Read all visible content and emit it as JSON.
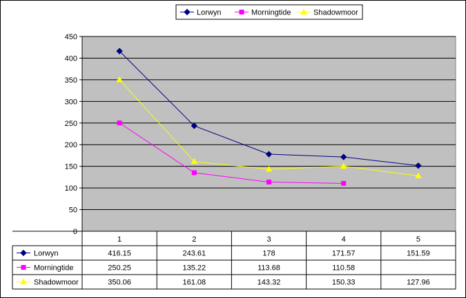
{
  "chart_data": {
    "type": "line",
    "categories": [
      "1",
      "2",
      "3",
      "4",
      "5"
    ],
    "series": [
      {
        "name": "Lorwyn",
        "values": [
          416.15,
          243.61,
          178,
          171.57,
          151.59
        ],
        "color": "#000080",
        "marker": "diamond"
      },
      {
        "name": "Morningtide",
        "values": [
          250.25,
          135.22,
          113.68,
          110.58,
          null
        ],
        "color": "#ff00ff",
        "marker": "square"
      },
      {
        "name": "Shadowmoor",
        "values": [
          350.06,
          161.08,
          143.32,
          150.33,
          127.96
        ],
        "color": "#ffff00",
        "marker": "triangle"
      }
    ],
    "ylim": [
      0,
      450
    ],
    "ytick_labels": [
      "0",
      "50",
      "100",
      "150",
      "200",
      "250",
      "300",
      "350",
      "400",
      "450"
    ],
    "grid": true,
    "plot_background": "#c0c0c0",
    "legend": "top",
    "data_table": true
  }
}
